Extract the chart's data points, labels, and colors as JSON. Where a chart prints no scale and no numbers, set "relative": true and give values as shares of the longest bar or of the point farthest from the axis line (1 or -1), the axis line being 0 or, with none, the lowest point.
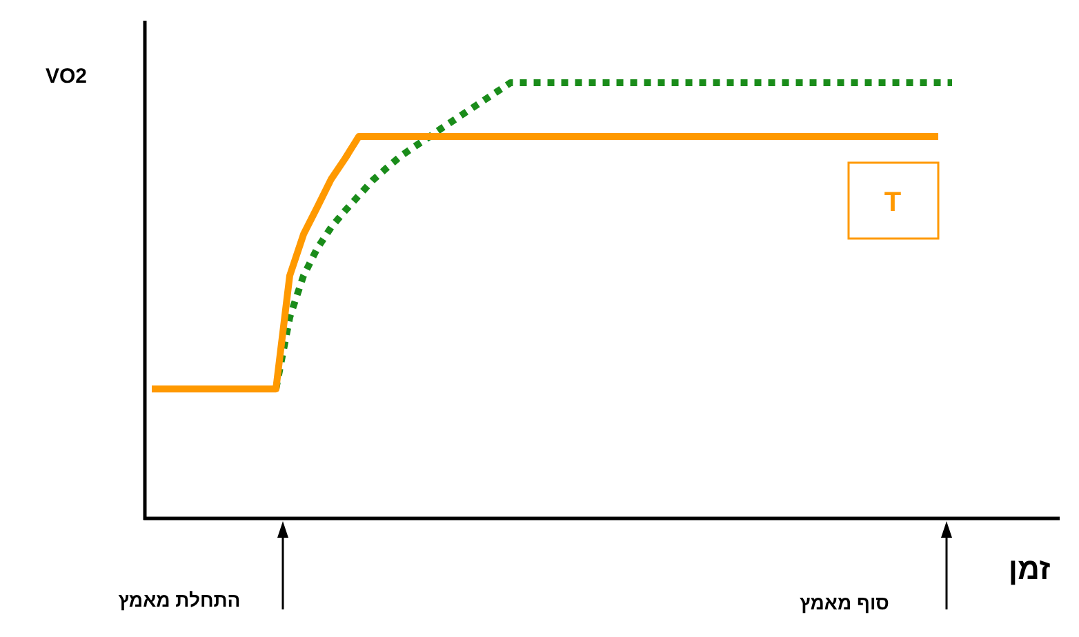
{
  "chart_data": {
    "type": "line",
    "relative": true,
    "ylabel": "VO2",
    "xlabel": "זמן",
    "categories": [
      null,
      null,
      null,
      null,
      null,
      null,
      null,
      null,
      null,
      null,
      null,
      null,
      null,
      null,
      null,
      null,
      null,
      null,
      null,
      null,
      null,
      null,
      null,
      null,
      null,
      null,
      null,
      null,
      null,
      null,
      null,
      null,
      null,
      null,
      null,
      null,
      null,
      null,
      null,
      null,
      null,
      null,
      null,
      null,
      null,
      null,
      null,
      null,
      null,
      null,
      null,
      null,
      null,
      null,
      null,
      null,
      null,
      null,
      null,
      null,
      null,
      null,
      null,
      null,
      null,
      null
    ],
    "series": [
      {
        "color": "#ff9900",
        "line_style": "solid",
        "values": [
          0.295,
          0.295,
          0.295,
          0.295,
          0.295,
          0.295,
          0.295,
          0.295,
          0.295,
          0.295,
          0.556,
          0.651,
          0.714,
          0.778,
          0.825,
          0.876,
          0.876,
          0.876,
          0.876,
          0.876,
          0.876,
          0.876,
          0.876,
          0.876,
          0.876,
          0.876,
          0.876,
          0.876,
          0.876,
          0.876,
          0.876,
          0.876,
          0.876,
          0.876,
          0.876,
          0.876,
          0.876,
          0.876,
          0.876,
          0.876,
          0.876,
          0.876,
          0.876,
          0.876,
          0.876,
          0.876,
          0.876,
          0.876,
          0.876,
          0.876,
          0.876,
          0.876,
          0.876,
          0.876,
          0.876,
          0.876,
          0.876,
          0.876,
          null,
          null,
          null,
          null,
          null,
          null,
          null,
          null
        ]
      },
      {
        "color": "#1a8c1a",
        "line_style": "dotted",
        "values": [
          null,
          null,
          null,
          null,
          null,
          null,
          null,
          null,
          null,
          0.295,
          0.46,
          0.556,
          0.619,
          0.667,
          0.705,
          0.74,
          0.775,
          0.803,
          0.83,
          0.852,
          0.873,
          0.895,
          0.916,
          0.937,
          0.958,
          0.979,
          1,
          1,
          1,
          1,
          1,
          1,
          1,
          1,
          1,
          1,
          1,
          1,
          1,
          1,
          1,
          1,
          1,
          1,
          1,
          1,
          1,
          1,
          1,
          1,
          1,
          1,
          1,
          1,
          1,
          1,
          1,
          1,
          1,
          null,
          null,
          null,
          null,
          null,
          null,
          null
        ]
      }
    ],
    "annotations": [
      "התחלת מאמץ",
      "סוף מאמץ",
      "T"
    ]
  }
}
